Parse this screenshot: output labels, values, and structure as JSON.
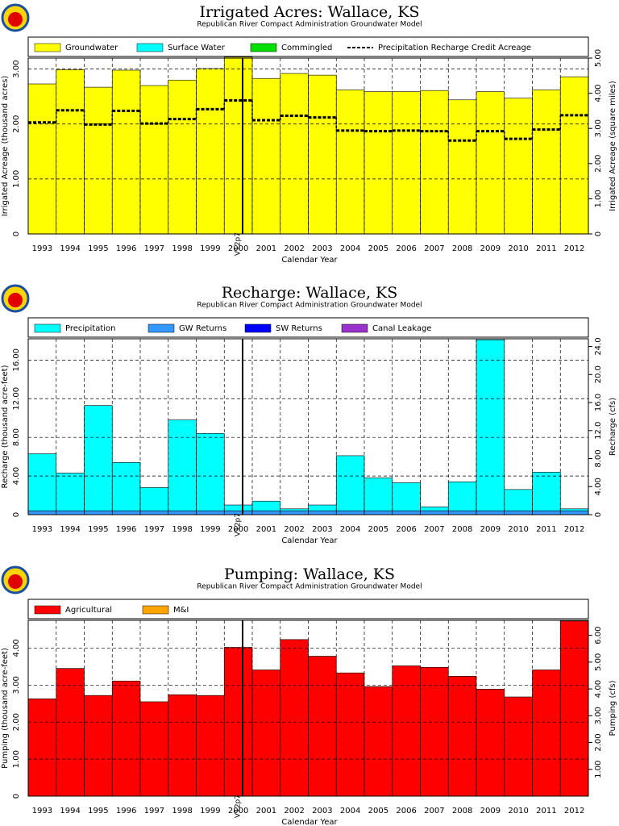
{
  "chart_data": [
    {
      "type": "bar",
      "title": "Irrigated Acres: Wallace, KS",
      "subtitle": "Republican River Compact Administration Groundwater Model",
      "x_label": "Calendar Year",
      "y_label": "Irrigated Acreage (thousand acres)",
      "y2_label": "Irrigated Acreage (square miles)",
      "annotation": "V12p7",
      "categories": [
        "1993",
        "1994",
        "1995",
        "1996",
        "1997",
        "1998",
        "1999",
        "2000",
        "2001",
        "2002",
        "2003",
        "2004",
        "2005",
        "2006",
        "2007",
        "2008",
        "2009",
        "2010",
        "2011",
        "2012"
      ],
      "series": [
        {
          "name": "Groundwater",
          "color": "#ffff00",
          "values": [
            2.73,
            2.99,
            2.67,
            2.98,
            2.7,
            2.8,
            3.01,
            3.22,
            2.83,
            2.92,
            2.89,
            2.62,
            2.59,
            2.59,
            2.61,
            2.44,
            2.59,
            2.47,
            2.62,
            2.86
          ]
        },
        {
          "name": "Surface Water",
          "color": "#00ffff",
          "values": [
            0,
            0,
            0,
            0,
            0,
            0,
            0,
            0,
            0,
            0,
            0,
            0,
            0,
            0,
            0,
            0,
            0,
            0,
            0,
            0
          ]
        },
        {
          "name": "Commingled",
          "color": "#00e000",
          "values": [
            0,
            0,
            0,
            0,
            0,
            0,
            0,
            0,
            0,
            0,
            0,
            0,
            0,
            0,
            0,
            0,
            0,
            0,
            0,
            0
          ]
        },
        {
          "name": "Precipitation Recharge Credit Acreage",
          "color": "#000000",
          "type": "step",
          "values": [
            2.03,
            2.25,
            1.99,
            2.24,
            2.01,
            2.09,
            2.27,
            2.43,
            2.07,
            2.15,
            2.12,
            1.88,
            1.87,
            1.88,
            1.87,
            1.7,
            1.87,
            1.73,
            1.9,
            2.16
          ]
        }
      ],
      "ylim": [
        0,
        3.2
      ],
      "yticks": [
        0,
        {
          "value": 1,
          "label": "1.00"
        },
        {
          "value": 2,
          "label": "2.00"
        },
        {
          "value": 3,
          "label": "3.00"
        }
      ],
      "y2lim": [
        0,
        5.0
      ],
      "y2ticks": [
        0,
        {
          "value": 1,
          "label": "1.00"
        },
        {
          "value": 2,
          "label": "2.00"
        },
        {
          "value": 3,
          "label": "3.00"
        },
        {
          "value": 4,
          "label": "4.00"
        },
        {
          "value": 5,
          "label": "5.00"
        }
      ],
      "grid": true
    },
    {
      "type": "bar",
      "title": "Recharge: Wallace, KS",
      "subtitle": "Republican River Compact Administration Groundwater Model",
      "x_label": "Calendar Year",
      "y_label": "Recharge (thousand acre-feet)",
      "y2_label": "Recharge (cfs)",
      "annotation": "V12p7",
      "categories": [
        "1993",
        "1994",
        "1995",
        "1996",
        "1997",
        "1998",
        "1999",
        "2000",
        "2001",
        "2002",
        "2003",
        "2004",
        "2005",
        "2006",
        "2007",
        "2008",
        "2009",
        "2010",
        "2011",
        "2012"
      ],
      "series": [
        {
          "name": "GW Returns",
          "color": "#3399ff",
          "values": [
            0.4,
            0.4,
            0.4,
            0.4,
            0.4,
            0.4,
            0.4,
            0.4,
            0.4,
            0.4,
            0.4,
            0.4,
            0.4,
            0.4,
            0.4,
            0.4,
            0.4,
            0.4,
            0.4,
            0.4
          ]
        },
        {
          "name": "Precipitation",
          "color": "#00ffff",
          "values": [
            5.9,
            3.9,
            10.9,
            5.0,
            2.4,
            9.4,
            8.0,
            0.6,
            1.0,
            0.2,
            0.6,
            5.7,
            3.4,
            2.9,
            0.4,
            3.0,
            17.7,
            2.2,
            4.0,
            0.2
          ]
        },
        {
          "name": "SW Returns",
          "color": "#0000ff",
          "values": [
            0,
            0,
            0,
            0,
            0,
            0,
            0,
            0,
            0,
            0,
            0,
            0,
            0,
            0,
            0,
            0,
            0,
            0,
            0,
            0
          ]
        },
        {
          "name": "Canal Leakage",
          "color": "#9933cc",
          "values": [
            0,
            0,
            0,
            0,
            0,
            0,
            0,
            0,
            0,
            0,
            0,
            0,
            0,
            0,
            0,
            0,
            0,
            0,
            0,
            0
          ]
        }
      ],
      "legend_order": [
        1,
        0,
        2,
        3
      ],
      "ylim": [
        0,
        18.2
      ],
      "yticks": [
        0,
        {
          "value": 4,
          "label": "4.00"
        },
        {
          "value": 8,
          "label": "8.00"
        },
        {
          "value": 12,
          "label": "12.00"
        },
        {
          "value": 16,
          "label": "16.00"
        }
      ],
      "y2lim": [
        0,
        25.1
      ],
      "y2ticks": [
        0,
        {
          "value": 4,
          "label": "4.00"
        },
        {
          "value": 8,
          "label": "8.00"
        },
        {
          "value": 12,
          "label": "12.0"
        },
        {
          "value": 16,
          "label": "16.0"
        },
        {
          "value": 20,
          "label": "20.0"
        },
        {
          "value": 24,
          "label": "24.0"
        }
      ],
      "grid": true
    },
    {
      "type": "bar",
      "title": "Pumping: Wallace, KS",
      "subtitle": "Republican River Compact Administration Groundwater Model",
      "x_label": "Calendar Year",
      "y_label": "Pumping (thousand acre-feet)",
      "y2_label": "Pumping (cfs)",
      "annotation": "V12p7",
      "categories": [
        "1993",
        "1994",
        "1995",
        "1996",
        "1997",
        "1998",
        "1999",
        "2000",
        "2001",
        "2002",
        "2003",
        "2004",
        "2005",
        "2006",
        "2007",
        "2008",
        "2009",
        "2010",
        "2011",
        "2012"
      ],
      "series": [
        {
          "name": "Agricultural",
          "color": "#ff0000",
          "values": [
            2.63,
            3.45,
            2.72,
            3.11,
            2.55,
            2.74,
            2.72,
            4.02,
            3.41,
            4.23,
            3.78,
            3.33,
            2.96,
            3.52,
            3.48,
            3.24,
            2.89,
            2.68,
            3.41,
            4.73
          ]
        },
        {
          "name": "M&I",
          "color": "#ffa500",
          "values": [
            0,
            0,
            0,
            0,
            0,
            0,
            0,
            0,
            0,
            0,
            0,
            0,
            0,
            0,
            0,
            0,
            0,
            0,
            0,
            0
          ]
        }
      ],
      "ylim": [
        0,
        4.75
      ],
      "yticks": [
        0,
        {
          "value": 1,
          "label": "1.00"
        },
        {
          "value": 2,
          "label": "2.00"
        },
        {
          "value": 3,
          "label": "3.00"
        },
        {
          "value": 4,
          "label": "4.00"
        }
      ],
      "y2lim": [
        0,
        6.56
      ],
      "y2ticks": [
        {
          "value": 1,
          "label": "1.00"
        },
        {
          "value": 2,
          "label": "2.00"
        },
        {
          "value": 3,
          "label": "3.00"
        },
        {
          "value": 4,
          "label": "4.00"
        },
        {
          "value": 5,
          "label": "5.00"
        },
        {
          "value": 6,
          "label": "6.00"
        }
      ],
      "grid": true
    }
  ]
}
